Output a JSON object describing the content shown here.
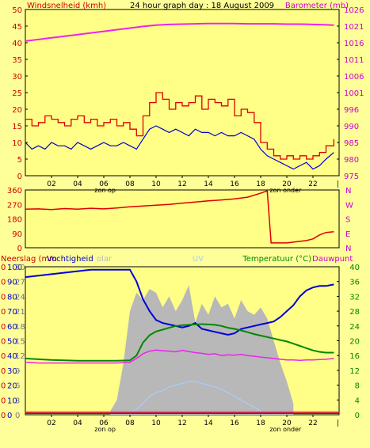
{
  "colors": {
    "background": "#FFFF99",
    "plot": "#FFFF88",
    "wind_avg": "#0000CC",
    "wind_gust": "#DD0000",
    "barometer": "#EE22EE",
    "direction": "#DD0000",
    "rain": "#CC0000",
    "humidity": "#0000DD",
    "solar": "#B8B8B8",
    "uv": "#AACCFF",
    "temperature": "#008800",
    "dewpoint": "#EE22EE",
    "axis_left": "#CC0000",
    "axis_right_top": "#CC00CC",
    "axis_right_bottom": "#008800"
  },
  "header": {
    "wind_label": "Windsnelheid (kmh)",
    "title": "24 hour graph day : 18 August 2009",
    "baro_label": "Barometer (mb)"
  },
  "bottom_header": {
    "rain_label": "Neerslag (mm",
    "hum_label": "Vochtigheid",
    "solar_label": "olar",
    "uv_label": "UV",
    "temp_label": "Temperatuur (°C)",
    "dew_label": "Dauwpunt"
  },
  "x_ticks": [
    "02",
    "04",
    "06",
    "08",
    "10",
    "12",
    "14",
    "16",
    "18",
    "20",
    "22"
  ],
  "sunrise_label": "zon op",
  "sunset_label": "zon onder",
  "chart_data": [
    {
      "type": "line",
      "y_left_ticks": [
        "0",
        "5",
        "10",
        "15",
        "20",
        "25",
        "30",
        "35",
        "40",
        "45",
        "50"
      ],
      "y_left_range": [
        0,
        50
      ],
      "y_right_ticks": [
        "975",
        "980",
        "985",
        "990",
        "996",
        "1001",
        "1006",
        "1011",
        "1016",
        "1021",
        "1026"
      ],
      "y_right_range": [
        975,
        1026
      ],
      "x_range_hours": [
        0,
        24
      ],
      "series": [
        {
          "name": "Barometer (mb)",
          "axis": "right",
          "x": [
            0,
            1,
            2,
            3,
            4,
            5,
            6,
            7,
            8,
            9,
            10,
            11,
            12,
            13,
            14,
            15,
            16,
            17,
            18,
            19,
            20,
            21,
            22,
            23,
            23.6
          ],
          "y": [
            1016.3,
            1016.8,
            1017.3,
            1017.8,
            1018.3,
            1018.8,
            1019.3,
            1019.8,
            1020.3,
            1020.8,
            1021.2,
            1021.4,
            1021.5,
            1021.6,
            1021.7,
            1021.7,
            1021.7,
            1021.6,
            1021.6,
            1021.6,
            1021.5,
            1021.5,
            1021.4,
            1021.3,
            1021.2
          ]
        },
        {
          "name": "Windsnelheid (kmh)",
          "axis": "left",
          "x": [
            0,
            0.5,
            1,
            1.5,
            2,
            2.5,
            3,
            3.5,
            4,
            4.5,
            5,
            5.5,
            6,
            6.5,
            7,
            7.5,
            8,
            8.5,
            9,
            9.5,
            10,
            10.5,
            11,
            11.5,
            12,
            12.5,
            13,
            13.5,
            14,
            14.5,
            15,
            15.5,
            16,
            16.5,
            17,
            17.5,
            18,
            18.5,
            19,
            19.5,
            20,
            20.5,
            21,
            21.5,
            22,
            22.5,
            23,
            23.6
          ],
          "y": [
            10,
            8,
            9,
            8,
            10,
            9,
            9,
            8,
            10,
            9,
            8,
            9,
            10,
            9,
            9,
            10,
            9,
            8,
            11,
            14,
            15,
            14,
            13,
            14,
            13,
            12,
            14,
            13,
            13,
            12,
            13,
            12,
            12,
            13,
            12,
            11,
            8,
            6,
            5,
            4,
            3,
            2,
            3,
            4,
            2,
            3,
            5,
            7
          ]
        },
        {
          "name": "Windstoten (kmh)",
          "axis": "left",
          "x": [
            0,
            0.5,
            1,
            1.5,
            2,
            2.5,
            3,
            3.5,
            4,
            4.5,
            5,
            5.5,
            6,
            6.5,
            7,
            7.5,
            8,
            8.5,
            9,
            9.5,
            10,
            10.5,
            11,
            11.5,
            12,
            12.5,
            13,
            13.5,
            14,
            14.5,
            15,
            15.5,
            16,
            16.5,
            17,
            17.5,
            18,
            18.5,
            19,
            19.5,
            20,
            20.5,
            21,
            21.5,
            22,
            22.5,
            23,
            23.6
          ],
          "y": [
            17,
            15,
            16,
            18,
            17,
            16,
            15,
            17,
            18,
            16,
            17,
            15,
            16,
            17,
            15,
            16,
            14,
            12,
            18,
            22,
            25,
            23,
            20,
            22,
            21,
            22,
            24,
            20,
            23,
            22,
            21,
            23,
            18,
            20,
            19,
            16,
            10,
            8,
            6,
            5,
            6,
            5,
            6,
            5,
            6,
            7,
            9,
            11
          ]
        }
      ]
    },
    {
      "type": "line",
      "y_ticks": [
        "0",
        "90",
        "180",
        "270",
        "360"
      ],
      "y_right_ticks": [
        "N",
        "E",
        "S",
        "W",
        "N"
      ],
      "y_range": [
        0,
        360
      ],
      "x_range_hours": [
        0,
        24
      ],
      "series": [
        {
          "name": "Windrichting",
          "x": [
            0,
            1,
            2,
            3,
            4,
            5,
            6,
            7,
            8,
            9,
            10,
            11,
            12,
            13,
            14,
            15,
            16,
            17,
            18,
            18.5,
            18.8,
            19,
            19.5,
            20,
            20.5,
            21,
            21.5,
            22,
            22.5,
            23,
            23.6
          ],
          "y": [
            240,
            242,
            238,
            244,
            240,
            246,
            242,
            248,
            255,
            260,
            265,
            270,
            278,
            285,
            292,
            298,
            305,
            315,
            340,
            355,
            30,
            30,
            30,
            30,
            35,
            40,
            45,
            55,
            80,
            95,
            100
          ]
        }
      ]
    },
    {
      "type": "line",
      "y_left_ticks": [
        "0",
        "0",
        "0",
        "0",
        "0",
        "0",
        "0",
        "0",
        "0",
        "0",
        "0"
      ],
      "y_left_ticks2": [
        "0",
        "10",
        "20",
        "30",
        "40",
        "50",
        "60",
        "70",
        "80",
        "90",
        "100"
      ],
      "y_left_ticks3": [
        "0",
        "3",
        "6",
        "9",
        "12",
        "15",
        "18",
        "21",
        "24",
        "27",
        "30"
      ],
      "y_right_ticks": [
        "0",
        "4",
        "8",
        "12",
        "16",
        "20",
        "24",
        "28",
        "32",
        "36",
        "40"
      ],
      "y_right_range": [
        0,
        40
      ],
      "x_range_hours": [
        0,
        24
      ],
      "series": [
        {
          "name": "Vochtigheid",
          "axis": "humidity",
          "x": [
            0,
            1,
            2,
            3,
            4,
            5,
            6,
            7,
            8,
            8.5,
            9,
            9.5,
            10,
            10.5,
            11,
            11.5,
            12,
            12.5,
            13,
            13.5,
            14,
            14.5,
            15,
            15.5,
            16,
            16.5,
            17,
            17.5,
            18,
            18.5,
            19,
            19.5,
            20,
            20.5,
            21,
            21.5,
            22,
            22.5,
            23,
            23.6
          ],
          "y": [
            93,
            94,
            95,
            96,
            97,
            98,
            98,
            98,
            98,
            90,
            78,
            70,
            64,
            62,
            61,
            60,
            59,
            60,
            62,
            58,
            57,
            56,
            55,
            54,
            55,
            58,
            59,
            60,
            61,
            62,
            63,
            66,
            70,
            74,
            80,
            84,
            86,
            87,
            87,
            88
          ]
        },
        {
          "name": "Temperatuur (°C)",
          "axis": "right",
          "x": [
            0,
            1,
            2,
            3,
            4,
            5,
            6,
            7,
            8,
            8.5,
            9,
            9.5,
            10,
            10.5,
            11,
            11.5,
            12,
            12.5,
            13,
            13.5,
            14,
            14.5,
            15,
            15.5,
            16,
            16.5,
            17,
            17.5,
            18,
            18.5,
            19,
            19.5,
            20,
            20.5,
            21,
            21.5,
            22,
            22.5,
            23,
            23.6
          ],
          "y": [
            15.2,
            15.0,
            14.8,
            14.7,
            14.6,
            14.6,
            14.6,
            14.6,
            14.7,
            16.0,
            19.5,
            21.5,
            22.5,
            23.0,
            23.5,
            24.0,
            24.2,
            24.3,
            24.4,
            24.5,
            24.4,
            24.3,
            24.0,
            23.5,
            23.2,
            22.8,
            22.3,
            21.8,
            21.4,
            21.0,
            20.6,
            20.2,
            19.8,
            19.2,
            18.6,
            18.0,
            17.4,
            17.0,
            16.8,
            16.8
          ]
        },
        {
          "name": "Dauwpunt",
          "axis": "right",
          "x": [
            0,
            1,
            2,
            3,
            4,
            5,
            6,
            7,
            8,
            8.5,
            9,
            9.5,
            10,
            10.5,
            11,
            11.5,
            12,
            12.5,
            13,
            13.5,
            14,
            14.5,
            15,
            15.5,
            16,
            16.5,
            17,
            17.5,
            18,
            18.5,
            19,
            19.5,
            20,
            20.5,
            21,
            21.5,
            22,
            22.5,
            23,
            23.6
          ],
          "y": [
            14.2,
            14.0,
            14.0,
            14.0,
            14.0,
            14.0,
            14.0,
            14.0,
            14.2,
            15.2,
            16.5,
            17.2,
            17.5,
            17.3,
            17.2,
            17.0,
            17.4,
            17.1,
            16.8,
            16.6,
            16.3,
            16.5,
            16.0,
            16.2,
            16.1,
            16.3,
            16.0,
            15.8,
            15.6,
            15.4,
            15.2,
            15.0,
            14.8,
            14.8,
            14.7,
            14.8,
            14.8,
            14.9,
            15.0,
            15.2
          ]
        },
        {
          "name": "Solar",
          "axis": "right",
          "x": [
            6.5,
            7,
            7.5,
            8,
            8.5,
            9,
            9.5,
            10,
            10.5,
            11,
            11.5,
            12,
            12.5,
            13,
            13.5,
            14,
            14.5,
            15,
            15.5,
            16,
            16.5,
            17,
            17.5,
            18,
            18.5,
            19,
            19.5,
            20,
            20.5
          ],
          "y": [
            1,
            4,
            14,
            28,
            33,
            31,
            34,
            33,
            29,
            32,
            28,
            31,
            35,
            25,
            30,
            27,
            32,
            29,
            30,
            26,
            31,
            28,
            27,
            29,
            26,
            20,
            14,
            9,
            3
          ]
        },
        {
          "name": "UV",
          "axis": "right",
          "x": [
            7.5,
            8,
            8.5,
            9,
            9.5,
            10,
            10.5,
            11,
            11.5,
            12,
            12.5,
            13,
            13.5,
            14,
            14.5,
            15,
            15.5,
            16,
            16.5,
            17,
            17.5,
            18,
            18.5,
            19
          ],
          "y": [
            0.3,
            0.6,
            1.5,
            3,
            5,
            6,
            6.5,
            7.5,
            8,
            8.5,
            9,
            9,
            8.5,
            8,
            7.5,
            6.8,
            6,
            5,
            4,
            3,
            2,
            1,
            0.6,
            0.2
          ]
        },
        {
          "name": "Neerslag (mm)",
          "axis": "rain",
          "x": [
            0,
            24
          ],
          "y": [
            0,
            0
          ]
        }
      ]
    }
  ]
}
